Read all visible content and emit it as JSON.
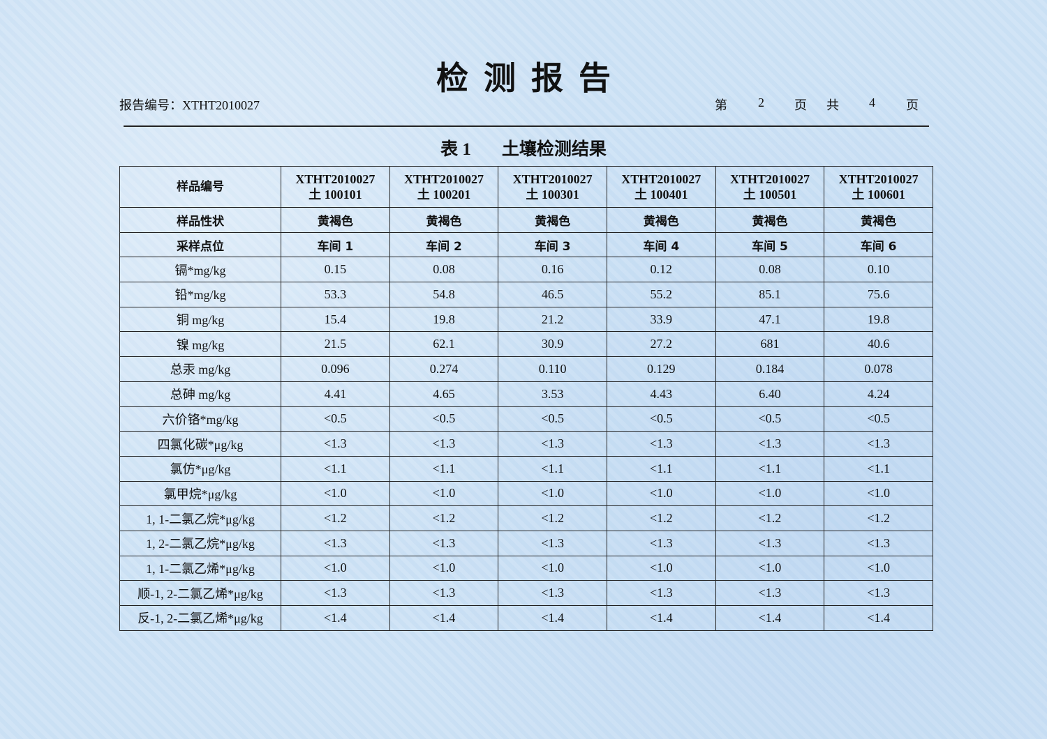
{
  "title": "检测报告",
  "report_number": "报告编号：XTHT2010027",
  "page": {
    "label_di": "第",
    "current": "2",
    "label_ye": "页",
    "label_gong": "共",
    "total": "4",
    "label_ye2": "页"
  },
  "table_caption": {
    "number": "表 1",
    "title": "土壤检测结果"
  },
  "table": {
    "header_label": "样品编号",
    "sample_ids": [
      {
        "line1": "XTHT2010027",
        "line2": "土 100101"
      },
      {
        "line1": "XTHT2010027",
        "line2": "土 100201"
      },
      {
        "line1": "XTHT2010027",
        "line2": "土 100301"
      },
      {
        "line1": "XTHT2010027",
        "line2": "土 100401"
      },
      {
        "line1": "XTHT2010027",
        "line2": "土 100501"
      },
      {
        "line1": "XTHT2010027",
        "line2": "土 100601"
      }
    ],
    "rows": [
      {
        "label": "样品性状",
        "values": [
          "黄褐色",
          "黄褐色",
          "黄褐色",
          "黄褐色",
          "黄褐色",
          "黄褐色"
        ],
        "bold": true
      },
      {
        "label": "采样点位",
        "values": [
          "车间 1",
          "车间 2",
          "车间 3",
          "车间 4",
          "车间 5",
          "车间 6"
        ],
        "bold": true
      },
      {
        "label": "镉*mg/kg",
        "values": [
          "0.15",
          "0.08",
          "0.16",
          "0.12",
          "0.08",
          "0.10"
        ]
      },
      {
        "label": "铅*mg/kg",
        "values": [
          "53.3",
          "54.8",
          "46.5",
          "55.2",
          "85.1",
          "75.6"
        ]
      },
      {
        "label": "铜 mg/kg",
        "values": [
          "15.4",
          "19.8",
          "21.2",
          "33.9",
          "47.1",
          "19.8"
        ]
      },
      {
        "label": "镍 mg/kg",
        "values": [
          "21.5",
          "62.1",
          "30.9",
          "27.2",
          "681",
          "40.6"
        ]
      },
      {
        "label": "总汞 mg/kg",
        "values": [
          "0.096",
          "0.274",
          "0.110",
          "0.129",
          "0.184",
          "0.078"
        ]
      },
      {
        "label": "总砷 mg/kg",
        "values": [
          "4.41",
          "4.65",
          "3.53",
          "4.43",
          "6.40",
          "4.24"
        ]
      },
      {
        "label": "六价铬*mg/kg",
        "values": [
          "<0.5",
          "<0.5",
          "<0.5",
          "<0.5",
          "<0.5",
          "<0.5"
        ]
      },
      {
        "label": "四氯化碳*μg/kg",
        "values": [
          "<1.3",
          "<1.3",
          "<1.3",
          "<1.3",
          "<1.3",
          "<1.3"
        ]
      },
      {
        "label": "氯仿*μg/kg",
        "values": [
          "<1.1",
          "<1.1",
          "<1.1",
          "<1.1",
          "<1.1",
          "<1.1"
        ]
      },
      {
        "label": "氯甲烷*μg/kg",
        "values": [
          "<1.0",
          "<1.0",
          "<1.0",
          "<1.0",
          "<1.0",
          "<1.0"
        ]
      },
      {
        "label": "1, 1-二氯乙烷*μg/kg",
        "values": [
          "<1.2",
          "<1.2",
          "<1.2",
          "<1.2",
          "<1.2",
          "<1.2"
        ]
      },
      {
        "label": "1, 2-二氯乙烷*μg/kg",
        "values": [
          "<1.3",
          "<1.3",
          "<1.3",
          "<1.3",
          "<1.3",
          "<1.3"
        ]
      },
      {
        "label": "1, 1-二氯乙烯*μg/kg",
        "values": [
          "<1.0",
          "<1.0",
          "<1.0",
          "<1.0",
          "<1.0",
          "<1.0"
        ]
      },
      {
        "label": "顺-1, 2-二氯乙烯*μg/kg",
        "values": [
          "<1.3",
          "<1.3",
          "<1.3",
          "<1.3",
          "<1.3",
          "<1.3"
        ]
      },
      {
        "label": "反-1, 2-二氯乙烯*μg/kg",
        "values": [
          "<1.4",
          "<1.4",
          "<1.4",
          "<1.4",
          "<1.4",
          "<1.4"
        ]
      }
    ]
  }
}
